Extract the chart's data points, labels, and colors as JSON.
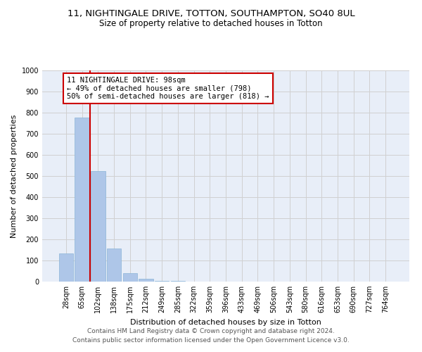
{
  "title1": "11, NIGHTINGALE DRIVE, TOTTON, SOUTHAMPTON, SO40 8UL",
  "title2": "Size of property relative to detached houses in Totton",
  "xlabel": "Distribution of detached houses by size in Totton",
  "ylabel": "Number of detached properties",
  "categories": [
    "28sqm",
    "65sqm",
    "102sqm",
    "138sqm",
    "175sqm",
    "212sqm",
    "249sqm",
    "285sqm",
    "322sqm",
    "359sqm",
    "396sqm",
    "433sqm",
    "469sqm",
    "506sqm",
    "543sqm",
    "580sqm",
    "616sqm",
    "653sqm",
    "690sqm",
    "727sqm",
    "764sqm"
  ],
  "values": [
    133,
    776,
    524,
    158,
    40,
    12,
    3,
    2,
    1,
    1,
    0,
    0,
    0,
    0,
    0,
    0,
    0,
    0,
    0,
    0,
    0
  ],
  "bar_color": "#aec6e8",
  "bar_edgecolor": "#8ab4d8",
  "vline_x": 1.5,
  "vline_color": "#cc0000",
  "annotation_text": "11 NIGHTINGALE DRIVE: 98sqm\n← 49% of detached houses are smaller (798)\n50% of semi-detached houses are larger (818) →",
  "annotation_box_color": "#ffffff",
  "annotation_box_edgecolor": "#cc0000",
  "ylim": [
    0,
    1000
  ],
  "yticks": [
    0,
    100,
    200,
    300,
    400,
    500,
    600,
    700,
    800,
    900,
    1000
  ],
  "grid_color": "#d0d0d0",
  "bg_color": "#e8eef8",
  "footer1": "Contains HM Land Registry data © Crown copyright and database right 2024.",
  "footer2": "Contains public sector information licensed under the Open Government Licence v3.0.",
  "title1_fontsize": 9.5,
  "title2_fontsize": 8.5,
  "xlabel_fontsize": 8,
  "ylabel_fontsize": 8,
  "tick_fontsize": 7,
  "annotation_fontsize": 7.5,
  "footer_fontsize": 6.5
}
